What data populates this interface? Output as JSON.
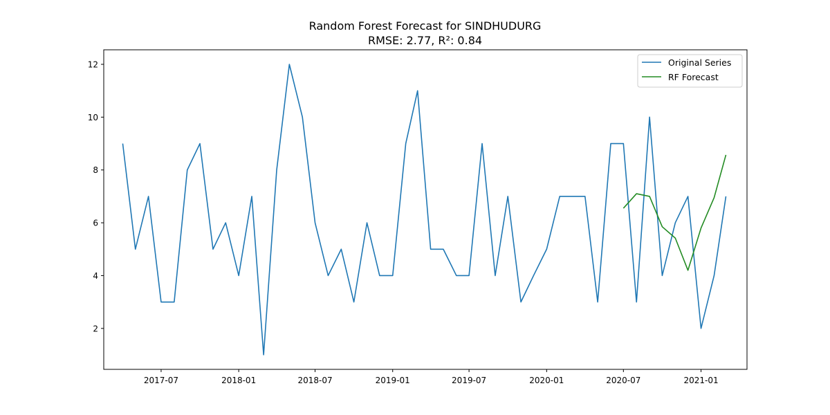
{
  "chart_data": {
    "type": "line",
    "title": "Random Forest Forecast for SINDHUDURG",
    "subtitle": "RMSE: 2.77, R²: 0.84",
    "xlabel": "",
    "ylabel": "",
    "xlim": [
      "2017-02-15",
      "2021-04-20"
    ],
    "ylim": [
      0.45,
      12.55
    ],
    "grid": false,
    "legend_position": "top-right",
    "x_ticks": [
      "2017-07",
      "2018-01",
      "2018-07",
      "2019-01",
      "2019-07",
      "2020-01",
      "2020-07",
      "2021-01"
    ],
    "y_ticks": [
      2,
      4,
      6,
      8,
      10,
      12
    ],
    "series": [
      {
        "name": "Original Series",
        "color": "#1f77b4",
        "x": [
          "2017-04",
          "2017-05",
          "2017-06",
          "2017-07",
          "2017-08",
          "2017-09",
          "2017-10",
          "2017-11",
          "2017-12",
          "2018-01",
          "2018-02",
          "2018-03",
          "2018-04",
          "2018-05",
          "2018-06",
          "2018-07",
          "2018-08",
          "2018-09",
          "2018-10",
          "2018-11",
          "2018-12",
          "2019-01",
          "2019-02",
          "2019-03",
          "2019-04",
          "2019-05",
          "2019-06",
          "2019-07",
          "2019-08",
          "2019-09",
          "2019-10",
          "2019-11",
          "2019-12",
          "2020-01",
          "2020-02",
          "2020-03",
          "2020-04",
          "2020-05",
          "2020-06",
          "2020-07",
          "2020-08",
          "2020-09",
          "2020-10",
          "2020-11",
          "2020-12",
          "2021-01",
          "2021-02",
          "2021-03"
        ],
        "values": [
          9,
          5,
          7,
          3,
          3,
          8,
          9,
          5,
          6,
          4,
          7,
          1,
          8,
          12,
          10,
          6,
          4,
          5,
          3,
          6,
          4,
          4,
          9,
          11,
          5,
          5,
          4,
          4,
          9,
          4,
          7,
          3,
          4,
          5,
          7,
          7,
          7,
          3,
          9,
          9,
          3,
          10,
          4,
          6,
          7,
          2,
          4,
          7
        ]
      },
      {
        "name": "RF Forecast",
        "color": "#228b22",
        "x": [
          "2020-07",
          "2020-08",
          "2020-09",
          "2020-10",
          "2020-11",
          "2020-12",
          "2021-01",
          "2021-02",
          "2021-03"
        ],
        "values": [
          6.55,
          7.1,
          7.0,
          5.85,
          5.42,
          4.2,
          5.8,
          6.95,
          8.57
        ]
      }
    ]
  }
}
